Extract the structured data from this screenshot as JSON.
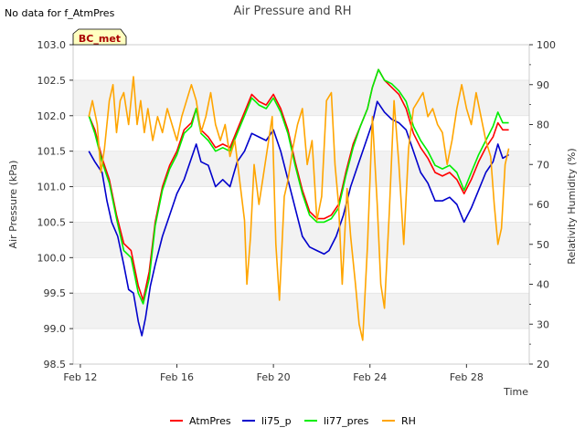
{
  "chart_data": {
    "type": "line",
    "title": "Air Pressure and RH",
    "note": "No data for f_AtmPres",
    "badge": "BC_met",
    "xlabel": "Time",
    "ylabel": "Air Pressure (kPa)",
    "y2label": "Relativity Humidity (%)",
    "xlim": [
      11.7,
      30.6
    ],
    "ylim": [
      98.5,
      103.0
    ],
    "y2lim": [
      20,
      100
    ],
    "x_ticks": [
      {
        "value": 12,
        "label": "Feb 12"
      },
      {
        "value": 16,
        "label": "Feb 16"
      },
      {
        "value": 20,
        "label": "Feb 20"
      },
      {
        "value": 24,
        "label": "Feb 24"
      },
      {
        "value": 28,
        "label": "Feb 28"
      }
    ],
    "y_ticks": [
      "98.5",
      "99.0",
      "99.5",
      "100.0",
      "100.5",
      "101.0",
      "101.5",
      "102.0",
      "102.5",
      "103.0"
    ],
    "y2_ticks": [
      "20",
      "30",
      "40",
      "50",
      "60",
      "70",
      "80",
      "90",
      "100"
    ],
    "grid": "horizontal bands",
    "legend_position": "bottom",
    "series": [
      {
        "name": "AtmPres",
        "axis": "left",
        "color": "#ff0000",
        "points": [
          [
            12.35,
            102.0
          ],
          [
            12.6,
            101.8
          ],
          [
            12.9,
            101.4
          ],
          [
            13.2,
            101.1
          ],
          [
            13.5,
            100.6
          ],
          [
            13.8,
            100.2
          ],
          [
            14.1,
            100.1
          ],
          [
            14.4,
            99.6
          ],
          [
            14.6,
            99.4
          ],
          [
            14.85,
            99.8
          ],
          [
            15.1,
            100.5
          ],
          [
            15.4,
            101.0
          ],
          [
            15.7,
            101.3
          ],
          [
            16.0,
            101.5
          ],
          [
            16.3,
            101.8
          ],
          [
            16.6,
            101.9
          ],
          [
            16.8,
            102.1
          ],
          [
            17.0,
            101.8
          ],
          [
            17.3,
            101.7
          ],
          [
            17.6,
            101.55
          ],
          [
            17.9,
            101.6
          ],
          [
            18.2,
            101.55
          ],
          [
            18.5,
            101.8
          ],
          [
            18.8,
            102.05
          ],
          [
            19.1,
            102.3
          ],
          [
            19.4,
            102.2
          ],
          [
            19.7,
            102.15
          ],
          [
            20.0,
            102.3
          ],
          [
            20.3,
            102.1
          ],
          [
            20.6,
            101.8
          ],
          [
            20.9,
            101.35
          ],
          [
            21.2,
            100.95
          ],
          [
            21.5,
            100.65
          ],
          [
            21.8,
            100.55
          ],
          [
            22.1,
            100.55
          ],
          [
            22.4,
            100.6
          ],
          [
            22.7,
            100.75
          ],
          [
            23.0,
            101.2
          ],
          [
            23.3,
            101.6
          ],
          [
            23.6,
            101.85
          ],
          [
            23.9,
            102.1
          ],
          [
            24.1,
            102.4
          ],
          [
            24.35,
            102.65
          ],
          [
            24.6,
            102.5
          ],
          [
            24.9,
            102.4
          ],
          [
            25.2,
            102.3
          ],
          [
            25.5,
            102.1
          ],
          [
            25.8,
            101.75
          ],
          [
            26.1,
            101.55
          ],
          [
            26.4,
            101.4
          ],
          [
            26.7,
            101.2
          ],
          [
            27.0,
            101.15
          ],
          [
            27.3,
            101.2
          ],
          [
            27.6,
            101.1
          ],
          [
            27.9,
            100.9
          ],
          [
            28.2,
            101.1
          ],
          [
            28.5,
            101.35
          ],
          [
            28.8,
            101.55
          ],
          [
            29.1,
            101.7
          ],
          [
            29.3,
            101.9
          ],
          [
            29.5,
            101.8
          ],
          [
            29.75,
            101.8
          ]
        ]
      },
      {
        "name": "li75_p",
        "axis": "left",
        "color": "#0000cc",
        "points": [
          [
            12.35,
            101.5
          ],
          [
            12.6,
            101.35
          ],
          [
            12.9,
            101.2
          ],
          [
            13.1,
            100.8
          ],
          [
            13.3,
            100.5
          ],
          [
            13.55,
            100.3
          ],
          [
            13.8,
            99.9
          ],
          [
            14.0,
            99.55
          ],
          [
            14.2,
            99.5
          ],
          [
            14.4,
            99.1
          ],
          [
            14.55,
            98.9
          ],
          [
            14.7,
            99.15
          ],
          [
            14.9,
            99.6
          ],
          [
            15.1,
            99.9
          ],
          [
            15.4,
            100.3
          ],
          [
            15.7,
            100.6
          ],
          [
            16.0,
            100.9
          ],
          [
            16.3,
            101.1
          ],
          [
            16.6,
            101.4
          ],
          [
            16.8,
            101.6
          ],
          [
            17.0,
            101.35
          ],
          [
            17.3,
            101.3
          ],
          [
            17.6,
            101.0
          ],
          [
            17.9,
            101.1
          ],
          [
            18.2,
            101.0
          ],
          [
            18.5,
            101.35
          ],
          [
            18.8,
            101.5
          ],
          [
            19.1,
            101.75
          ],
          [
            19.4,
            101.7
          ],
          [
            19.7,
            101.65
          ],
          [
            20.0,
            101.8
          ],
          [
            20.3,
            101.5
          ],
          [
            20.6,
            101.1
          ],
          [
            20.9,
            100.7
          ],
          [
            21.2,
            100.3
          ],
          [
            21.5,
            100.15
          ],
          [
            21.8,
            100.1
          ],
          [
            22.1,
            100.05
          ],
          [
            22.3,
            100.1
          ],
          [
            22.6,
            100.3
          ],
          [
            22.9,
            100.6
          ],
          [
            23.2,
            101.0
          ],
          [
            23.5,
            101.3
          ],
          [
            23.8,
            101.6
          ],
          [
            24.1,
            101.9
          ],
          [
            24.3,
            102.2
          ],
          [
            24.6,
            102.05
          ],
          [
            24.9,
            101.95
          ],
          [
            25.2,
            101.9
          ],
          [
            25.5,
            101.8
          ],
          [
            25.8,
            101.5
          ],
          [
            26.1,
            101.2
          ],
          [
            26.4,
            101.05
          ],
          [
            26.7,
            100.8
          ],
          [
            27.0,
            100.8
          ],
          [
            27.3,
            100.85
          ],
          [
            27.6,
            100.75
          ],
          [
            27.9,
            100.5
          ],
          [
            28.2,
            100.7
          ],
          [
            28.5,
            100.95
          ],
          [
            28.8,
            101.2
          ],
          [
            29.1,
            101.35
          ],
          [
            29.3,
            101.6
          ],
          [
            29.5,
            101.4
          ],
          [
            29.75,
            101.45
          ]
        ]
      },
      {
        "name": "li77_pres",
        "axis": "left",
        "color": "#00ee00",
        "points": [
          [
            12.35,
            102.0
          ],
          [
            12.6,
            101.75
          ],
          [
            12.9,
            101.35
          ],
          [
            13.2,
            101.05
          ],
          [
            13.5,
            100.55
          ],
          [
            13.8,
            100.1
          ],
          [
            14.1,
            100.0
          ],
          [
            14.4,
            99.5
          ],
          [
            14.6,
            99.35
          ],
          [
            14.85,
            99.7
          ],
          [
            15.1,
            100.45
          ],
          [
            15.4,
            100.95
          ],
          [
            15.7,
            101.25
          ],
          [
            16.0,
            101.45
          ],
          [
            16.3,
            101.75
          ],
          [
            16.6,
            101.85
          ],
          [
            16.8,
            102.1
          ],
          [
            17.0,
            101.75
          ],
          [
            17.3,
            101.65
          ],
          [
            17.6,
            101.5
          ],
          [
            17.9,
            101.55
          ],
          [
            18.2,
            101.5
          ],
          [
            18.5,
            101.75
          ],
          [
            18.8,
            102.0
          ],
          [
            19.1,
            102.25
          ],
          [
            19.4,
            102.15
          ],
          [
            19.7,
            102.1
          ],
          [
            20.0,
            102.25
          ],
          [
            20.3,
            102.05
          ],
          [
            20.6,
            101.75
          ],
          [
            20.9,
            101.3
          ],
          [
            21.2,
            100.9
          ],
          [
            21.5,
            100.6
          ],
          [
            21.8,
            100.5
          ],
          [
            22.1,
            100.5
          ],
          [
            22.4,
            100.55
          ],
          [
            22.7,
            100.7
          ],
          [
            23.0,
            101.15
          ],
          [
            23.3,
            101.55
          ],
          [
            23.6,
            101.85
          ],
          [
            23.9,
            102.1
          ],
          [
            24.1,
            102.4
          ],
          [
            24.35,
            102.65
          ],
          [
            24.6,
            102.5
          ],
          [
            24.9,
            102.45
          ],
          [
            25.2,
            102.35
          ],
          [
            25.5,
            102.2
          ],
          [
            25.8,
            101.85
          ],
          [
            26.1,
            101.65
          ],
          [
            26.4,
            101.5
          ],
          [
            26.7,
            101.3
          ],
          [
            27.0,
            101.25
          ],
          [
            27.3,
            101.3
          ],
          [
            27.6,
            101.2
          ],
          [
            27.9,
            100.95
          ],
          [
            28.2,
            101.2
          ],
          [
            28.5,
            101.45
          ],
          [
            28.8,
            101.65
          ],
          [
            29.1,
            101.85
          ],
          [
            29.3,
            102.05
          ],
          [
            29.5,
            101.9
          ],
          [
            29.75,
            101.9
          ]
        ]
      },
      {
        "name": "RH",
        "axis": "right",
        "color": "#ffa500",
        "points": [
          [
            12.35,
            82
          ],
          [
            12.5,
            86
          ],
          [
            12.7,
            80
          ],
          [
            12.85,
            68
          ],
          [
            13.0,
            74
          ],
          [
            13.2,
            86
          ],
          [
            13.35,
            90
          ],
          [
            13.5,
            78
          ],
          [
            13.65,
            86
          ],
          [
            13.8,
            88
          ],
          [
            14.0,
            80
          ],
          [
            14.2,
            92
          ],
          [
            14.35,
            80
          ],
          [
            14.5,
            86
          ],
          [
            14.65,
            78
          ],
          [
            14.8,
            84
          ],
          [
            15.0,
            76
          ],
          [
            15.2,
            82
          ],
          [
            15.4,
            78
          ],
          [
            15.6,
            84
          ],
          [
            15.8,
            80
          ],
          [
            16.0,
            76
          ],
          [
            16.2,
            82
          ],
          [
            16.4,
            86
          ],
          [
            16.6,
            90
          ],
          [
            16.8,
            86
          ],
          [
            17.0,
            78
          ],
          [
            17.2,
            82
          ],
          [
            17.4,
            88
          ],
          [
            17.6,
            80
          ],
          [
            17.8,
            76
          ],
          [
            18.0,
            80
          ],
          [
            18.2,
            72
          ],
          [
            18.4,
            76
          ],
          [
            18.6,
            66
          ],
          [
            18.8,
            56
          ],
          [
            18.9,
            40
          ],
          [
            19.05,
            52
          ],
          [
            19.2,
            70
          ],
          [
            19.4,
            60
          ],
          [
            19.6,
            68
          ],
          [
            19.8,
            76
          ],
          [
            19.95,
            82
          ],
          [
            20.1,
            50
          ],
          [
            20.25,
            36
          ],
          [
            20.45,
            62
          ],
          [
            20.6,
            66
          ],
          [
            20.8,
            74
          ],
          [
            21.0,
            80
          ],
          [
            21.2,
            84
          ],
          [
            21.4,
            70
          ],
          [
            21.6,
            76
          ],
          [
            21.8,
            56
          ],
          [
            22.0,
            62
          ],
          [
            22.2,
            86
          ],
          [
            22.4,
            88
          ],
          [
            22.55,
            70
          ],
          [
            22.7,
            60
          ],
          [
            22.85,
            40
          ],
          [
            23.05,
            64
          ],
          [
            23.2,
            52
          ],
          [
            23.4,
            40
          ],
          [
            23.55,
            30
          ],
          [
            23.7,
            26
          ],
          [
            23.9,
            50
          ],
          [
            24.1,
            82
          ],
          [
            24.3,
            60
          ],
          [
            24.45,
            40
          ],
          [
            24.6,
            34
          ],
          [
            24.8,
            58
          ],
          [
            25.0,
            86
          ],
          [
            25.2,
            70
          ],
          [
            25.4,
            50
          ],
          [
            25.6,
            74
          ],
          [
            25.8,
            84
          ],
          [
            26.0,
            86
          ],
          [
            26.2,
            88
          ],
          [
            26.4,
            82
          ],
          [
            26.6,
            84
          ],
          [
            26.8,
            80
          ],
          [
            27.0,
            78
          ],
          [
            27.2,
            70
          ],
          [
            27.4,
            76
          ],
          [
            27.6,
            84
          ],
          [
            27.8,
            90
          ],
          [
            28.0,
            84
          ],
          [
            28.2,
            80
          ],
          [
            28.4,
            88
          ],
          [
            28.6,
            82
          ],
          [
            28.8,
            76
          ],
          [
            29.0,
            72
          ],
          [
            29.15,
            60
          ],
          [
            29.3,
            50
          ],
          [
            29.45,
            54
          ],
          [
            29.6,
            70
          ],
          [
            29.75,
            74
          ]
        ]
      }
    ]
  }
}
